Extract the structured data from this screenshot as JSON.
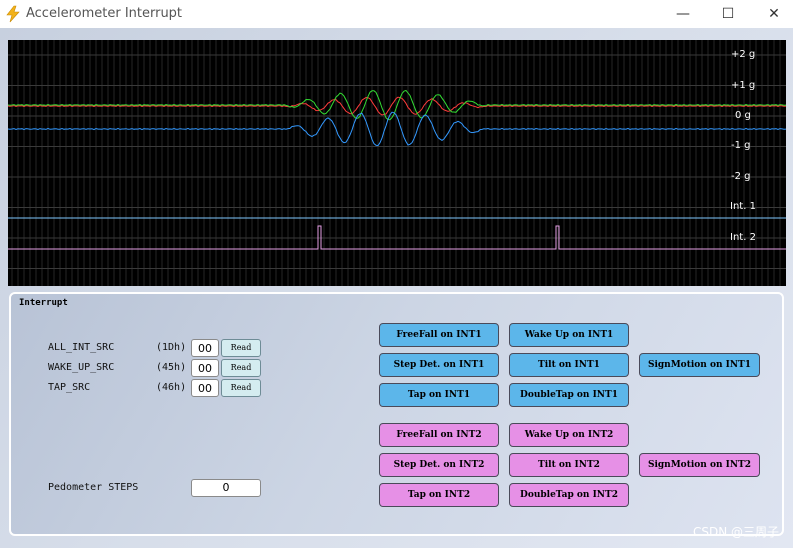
{
  "window": {
    "title": "Accelerometer Interrupt",
    "minimize": "—",
    "maximize": "☐",
    "close": "✕"
  },
  "scope": {
    "axis_labels": [
      "+2 g",
      "+1 g",
      "0 g",
      "-1 g",
      "-2 g",
      "Int. 1",
      "Int. 2"
    ],
    "trace_colors": {
      "x": "#ff3b3b",
      "y": "#33dd33",
      "z": "#3399ff",
      "int1": "#7fc8ff",
      "int2": "#e6a0e6"
    }
  },
  "panel": {
    "title": "Interrupt",
    "registers": [
      {
        "name": "ALL_INT_SRC",
        "addr": "(1Dh)",
        "value": "00",
        "button": "Read"
      },
      {
        "name": "WAKE_UP_SRC",
        "addr": "(45h)",
        "value": "00",
        "button": "Read"
      },
      {
        "name": "TAP_SRC",
        "addr": "(46h)",
        "value": "00",
        "button": "Read"
      }
    ],
    "pedometer": {
      "label": "Pedometer STEPS",
      "value": "0"
    },
    "int1_buttons": {
      "freefall": "FreeFall on INT1",
      "wakeup": "Wake Up on INT1",
      "stepdet": "Step Det. on INT1",
      "tilt": "Tilt on INT1",
      "signmotion": "SignMotion on INT1",
      "tap": "Tap on INT1",
      "doubletap": "DoubleTap on INT1"
    },
    "int2_buttons": {
      "freefall": "FreeFall on INT2",
      "wakeup": "Wake Up on INT2",
      "stepdet": "Step Det. on INT2",
      "tilt": "Tilt on INT2",
      "signmotion": "SignMotion on INT2",
      "tap": "Tap on INT2",
      "doubletap": "DoubleTap on INT2"
    },
    "colors": {
      "int1": "#5cb6ea",
      "int2": "#e690e6"
    }
  },
  "watermark": "CSDN @三周子"
}
